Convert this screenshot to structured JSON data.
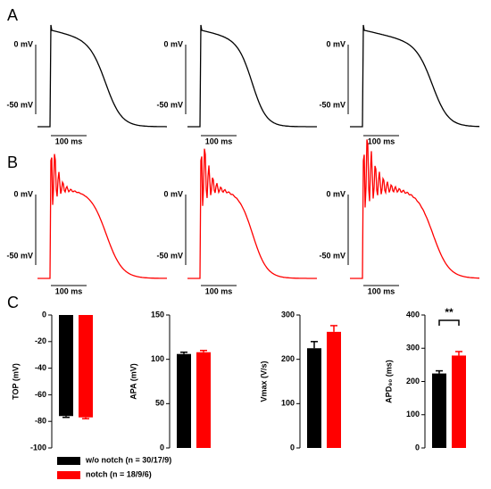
{
  "panels": {
    "a": "A",
    "b": "B",
    "c": "C"
  },
  "scale": {
    "zero": "0 mV",
    "minus50": "-50 mV",
    "time": "100 ms"
  },
  "legend": {
    "entries": [
      {
        "name": "w/o notch (n = 30/17/9)",
        "color": "#000000"
      },
      {
        "name": "notch (n = 18/9/6)",
        "color": "#ff0000"
      }
    ]
  },
  "chart_data": [
    {
      "type": "bar",
      "ylabel": "TOP (mV)",
      "ylim": [
        -100,
        0
      ],
      "yticks": [
        0,
        -20,
        -40,
        -60,
        -80,
        -100
      ],
      "values": [
        -76,
        -77
      ],
      "errors": [
        1,
        1
      ]
    },
    {
      "type": "bar",
      "ylabel": "APA (mV)",
      "ylim": [
        0,
        150
      ],
      "yticks": [
        0,
        50,
        100,
        150
      ],
      "values": [
        106,
        108
      ],
      "errors": [
        2,
        2
      ]
    },
    {
      "type": "bar",
      "ylabel": "Vmax (V/s)",
      "ylim": [
        0,
        300
      ],
      "yticks": [
        0,
        100,
        200,
        300
      ],
      "values": [
        225,
        262
      ],
      "errors": [
        15,
        14
      ]
    },
    {
      "type": "bar",
      "ylabel": "APD₉₀ (ms)",
      "ylim": [
        0,
        400
      ],
      "yticks": [
        0,
        100,
        200,
        300,
        400
      ],
      "values": [
        224,
        278
      ],
      "errors": [
        8,
        12
      ],
      "annotation": "**"
    }
  ]
}
